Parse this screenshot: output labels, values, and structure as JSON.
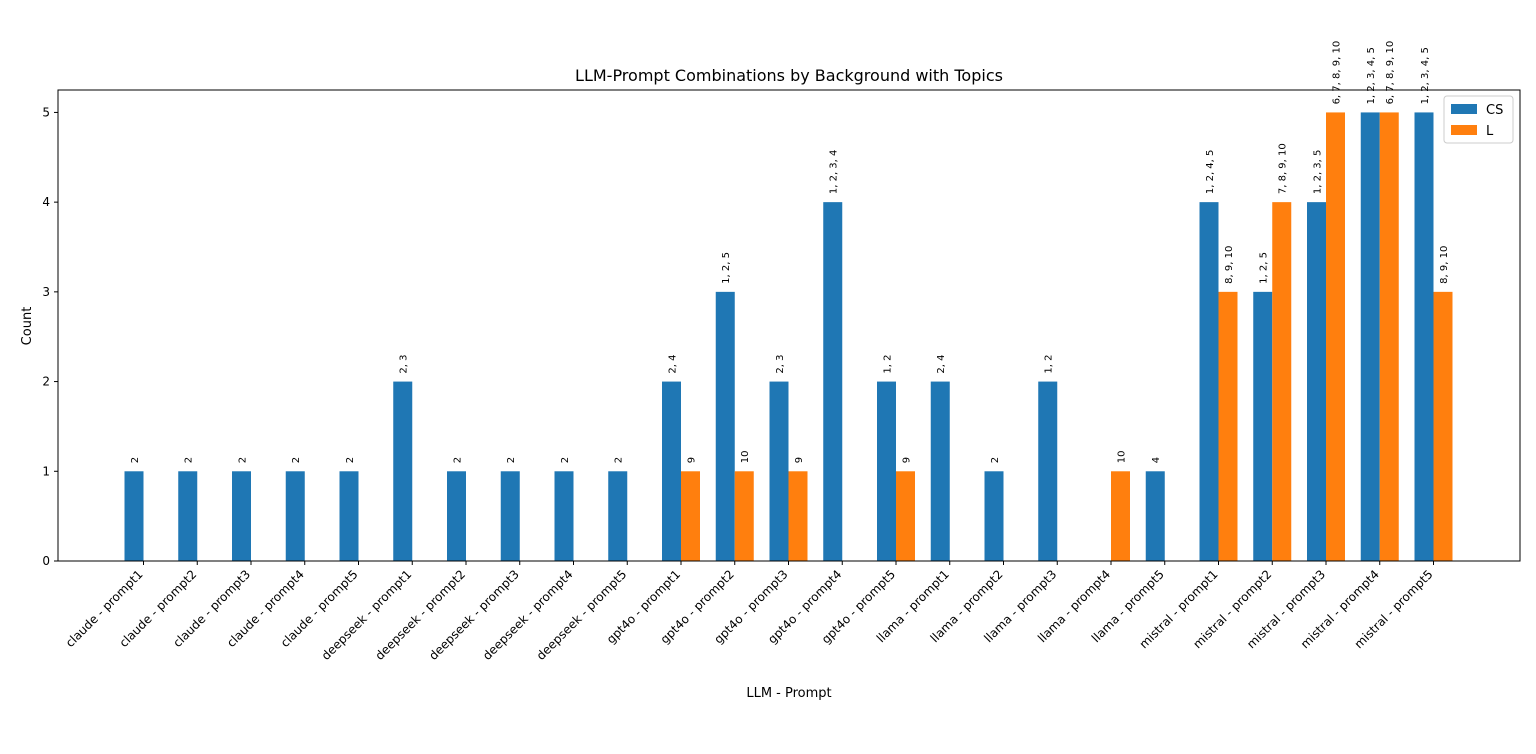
{
  "chart_data": {
    "type": "bar",
    "title": "LLM-Prompt Combinations by Background with Topics",
    "xlabel": "LLM - Prompt",
    "ylabel": "Count",
    "ylim": [
      0,
      5.25
    ],
    "yticks": [
      0,
      1,
      2,
      3,
      4,
      5
    ],
    "legend": "top-right",
    "grid": false,
    "categories": [
      "claude - prompt1",
      "claude - prompt2",
      "claude - prompt3",
      "claude - prompt4",
      "claude - prompt5",
      "deepseek - prompt1",
      "deepseek - prompt2",
      "deepseek - prompt3",
      "deepseek - prompt4",
      "deepseek - prompt5",
      "gpt4o - prompt1",
      "gpt4o - prompt2",
      "gpt4o - prompt3",
      "gpt4o - prompt4",
      "gpt4o - prompt5",
      "llama - prompt1",
      "llama - prompt2",
      "llama - prompt3",
      "llama - prompt4",
      "llama - prompt5",
      "mistral - prompt1",
      "mistral - prompt2",
      "mistral - prompt3",
      "mistral - prompt4",
      "mistral - prompt5"
    ],
    "series": [
      {
        "name": "CS",
        "color": "#1f77b4",
        "values": [
          1,
          1,
          1,
          1,
          1,
          2,
          1,
          1,
          1,
          1,
          2,
          3,
          2,
          4,
          2,
          2,
          1,
          2,
          0,
          1,
          4,
          3,
          4,
          5,
          5
        ],
        "labels": [
          "2",
          "2",
          "2",
          "2",
          "2",
          "2, 3",
          "2",
          "2",
          "2",
          "2",
          "2, 4",
          "1, 2, 5",
          "2, 3",
          "1, 2, 3, 4",
          "1, 2",
          "2, 4",
          "2",
          "1, 2",
          "",
          "4",
          "1, 2, 4, 5",
          "1, 2, 5",
          "1, 2, 3, 5",
          "1, 2, 3, 4, 5",
          "1, 2, 3, 4, 5"
        ]
      },
      {
        "name": "L",
        "color": "#ff7f0e",
        "values": [
          0,
          0,
          0,
          0,
          0,
          0,
          0,
          0,
          0,
          0,
          1,
          1,
          1,
          0,
          1,
          0,
          0,
          0,
          1,
          0,
          3,
          4,
          5,
          5,
          3
        ],
        "labels": [
          "",
          "",
          "",
          "",
          "",
          "",
          "",
          "",
          "",
          "",
          "9",
          "10",
          "9",
          "",
          "9",
          "",
          "",
          "",
          "10",
          "",
          "8, 9, 10",
          "7, 8, 9, 10",
          "6, 7, 8, 9, 10",
          "6, 7, 8, 9, 10",
          "8, 9, 10"
        ]
      }
    ]
  }
}
